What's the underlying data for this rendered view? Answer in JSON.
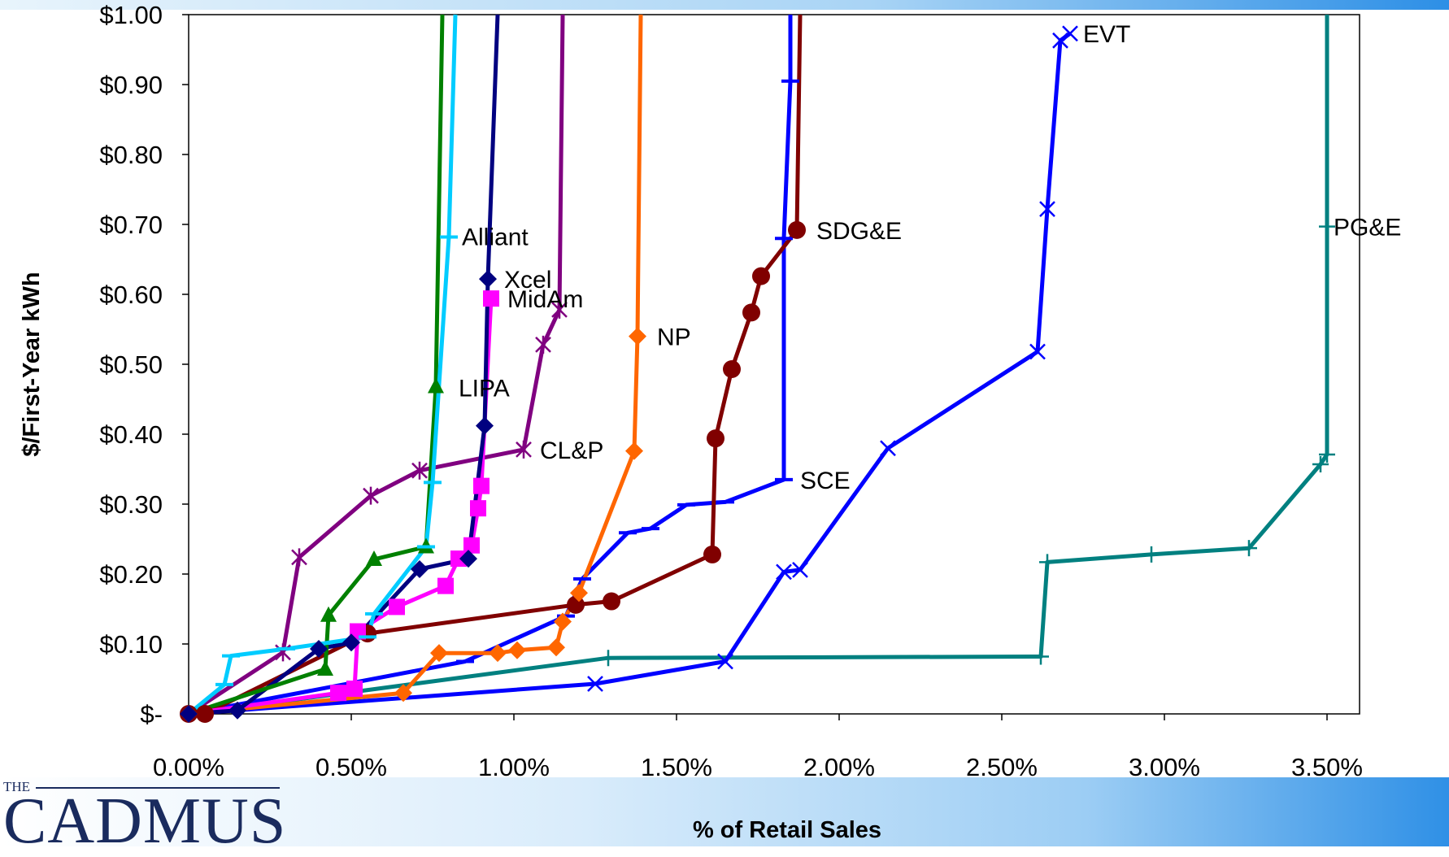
{
  "chart_data": {
    "type": "line",
    "title": "",
    "xlabel": "% of Retail Sales",
    "ylabel": "$/First-Year kWh",
    "xlim": [
      0,
      0.036
    ],
    "ylim": [
      0,
      1.0
    ],
    "x_ticks": [
      "0.00%",
      "0.50%",
      "1.00%",
      "1.50%",
      "2.00%",
      "2.50%",
      "3.00%",
      "3.50%"
    ],
    "y_ticks": [
      "$-",
      "$0.10",
      "$0.20",
      "$0.30",
      "$0.40",
      "$0.50",
      "$0.60",
      "$0.70",
      "$0.80",
      "$0.90",
      "$1.00"
    ],
    "grid": false,
    "legend": "none (series labeled directly)",
    "series": [
      {
        "name": "PG&E",
        "color": "#008080",
        "marker": "plus",
        "points": [
          [
            0.0,
            0.0
          ],
          [
            0.0129,
            0.08
          ],
          [
            0.0262,
            0.082
          ],
          [
            0.0264,
            0.217
          ],
          [
            0.0296,
            0.228
          ],
          [
            0.0326,
            0.237
          ],
          [
            0.0348,
            0.357
          ],
          [
            0.035,
            0.371
          ],
          [
            0.035,
            0.697
          ],
          [
            0.035,
            1.05
          ]
        ]
      },
      {
        "name": "EVT",
        "color": "#0000ff",
        "marker": "x",
        "points": [
          [
            0.0,
            0.0
          ],
          [
            0.0125,
            0.043
          ],
          [
            0.0165,
            0.075
          ],
          [
            0.0183,
            0.203
          ],
          [
            0.0188,
            0.206
          ],
          [
            0.0215,
            0.38
          ],
          [
            0.0261,
            0.518
          ],
          [
            0.0264,
            0.722
          ],
          [
            0.0268,
            0.963
          ],
          [
            0.0271,
            0.973
          ]
        ]
      },
      {
        "name": "SCE",
        "color": "#0000ff",
        "marker": "dash",
        "points": [
          [
            0.0,
            0.0
          ],
          [
            0.0085,
            0.075
          ],
          [
            0.0116,
            0.14
          ],
          [
            0.0121,
            0.193
          ],
          [
            0.0135,
            0.259
          ],
          [
            0.0142,
            0.265
          ],
          [
            0.0153,
            0.299
          ],
          [
            0.0165,
            0.303
          ],
          [
            0.0183,
            0.335
          ],
          [
            0.0183,
            0.68
          ],
          [
            0.0185,
            0.905
          ],
          [
            0.0185,
            1.05
          ]
        ]
      },
      {
        "name": "SDG&E",
        "color": "#800000",
        "marker": "circle",
        "points": [
          [
            0.0,
            0.0
          ],
          [
            0.0005,
            0.0
          ],
          [
            0.0055,
            0.115
          ],
          [
            0.0119,
            0.156
          ],
          [
            0.013,
            0.161
          ],
          [
            0.0161,
            0.228
          ],
          [
            0.0162,
            0.394
          ],
          [
            0.0167,
            0.493
          ],
          [
            0.0173,
            0.574
          ],
          [
            0.0176,
            0.626
          ],
          [
            0.0187,
            0.692
          ],
          [
            0.0188,
            1.05
          ]
        ]
      },
      {
        "name": "NP",
        "color": "#ff6600",
        "marker": "diamond",
        "points": [
          [
            0.0,
            0.0
          ],
          [
            0.0066,
            0.03
          ],
          [
            0.0077,
            0.087
          ],
          [
            0.0095,
            0.087
          ],
          [
            0.0101,
            0.091
          ],
          [
            0.0113,
            0.095
          ],
          [
            0.0115,
            0.132
          ],
          [
            0.012,
            0.173
          ],
          [
            0.0137,
            0.376
          ],
          [
            0.0138,
            0.54
          ],
          [
            0.0139,
            1.05
          ]
        ]
      },
      {
        "name": "CL&P",
        "color": "#800080",
        "marker": "star",
        "points": [
          [
            0.0,
            0.0
          ],
          [
            0.0029,
            0.088
          ],
          [
            0.0034,
            0.224
          ],
          [
            0.0056,
            0.312
          ],
          [
            0.0071,
            0.348
          ],
          [
            0.0103,
            0.378
          ],
          [
            0.0109,
            0.528
          ],
          [
            0.0114,
            0.578
          ],
          [
            0.0115,
            1.05
          ]
        ]
      },
      {
        "name": "MidAm",
        "color": "#ff00ff",
        "marker": "square",
        "points": [
          [
            0.0,
            0.0
          ],
          [
            0.0046,
            0.03
          ],
          [
            0.0051,
            0.036
          ],
          [
            0.0052,
            0.118
          ],
          [
            0.0064,
            0.153
          ],
          [
            0.0079,
            0.183
          ],
          [
            0.0083,
            0.222
          ],
          [
            0.0087,
            0.241
          ],
          [
            0.0089,
            0.294
          ],
          [
            0.009,
            0.326
          ],
          [
            0.0093,
            0.594
          ]
        ]
      },
      {
        "name": "Xcel",
        "color": "#000080",
        "marker": "diamond",
        "points": [
          [
            0.0,
            0.0
          ],
          [
            0.0015,
            0.005
          ],
          [
            0.004,
            0.093
          ],
          [
            0.005,
            0.102
          ],
          [
            0.0071,
            0.207
          ],
          [
            0.0086,
            0.222
          ],
          [
            0.0091,
            0.412
          ],
          [
            0.0092,
            0.622
          ],
          [
            0.0095,
            1.05
          ]
        ]
      },
      {
        "name": "LIPA",
        "color": "#008000",
        "marker": "triangle",
        "points": [
          [
            0.0,
            0.0
          ],
          [
            0.0042,
            0.064
          ],
          [
            0.0043,
            0.141
          ],
          [
            0.0057,
            0.221
          ],
          [
            0.0073,
            0.239
          ],
          [
            0.0076,
            0.468
          ],
          [
            0.0078,
            1.05
          ]
        ]
      },
      {
        "name": "Alliant",
        "color": "#00ccff",
        "marker": "dash",
        "points": [
          [
            0.0,
            0.0
          ],
          [
            0.0011,
            0.042
          ],
          [
            0.0013,
            0.083
          ],
          [
            0.003,
            0.093
          ],
          [
            0.0055,
            0.11
          ],
          [
            0.0057,
            0.143
          ],
          [
            0.0073,
            0.239
          ],
          [
            0.0075,
            0.331
          ],
          [
            0.008,
            0.682
          ],
          [
            0.0082,
            1.05
          ]
        ]
      }
    ],
    "annotations": [
      {
        "text": "Alliant",
        "x": 0.0084,
        "y": 0.683
      },
      {
        "text": "Xcel",
        "x": 0.0097,
        "y": 0.622
      },
      {
        "text": "MidAm",
        "x": 0.0098,
        "y": 0.594
      },
      {
        "text": "NP",
        "x": 0.0144,
        "y": 0.54
      },
      {
        "text": "LIPA",
        "x": 0.0083,
        "y": 0.467
      },
      {
        "text": "CL&P",
        "x": 0.0108,
        "y": 0.378
      },
      {
        "text": "SDG&E",
        "x": 0.0193,
        "y": 0.692
      },
      {
        "text": "SCE",
        "x": 0.0188,
        "y": 0.335
      },
      {
        "text": "EVT",
        "x": 0.0275,
        "y": 0.973
      },
      {
        "text": "PG&E",
        "x": 0.0352,
        "y": 0.697
      }
    ]
  },
  "logo": {
    "the": "THE",
    "name": "CADMUS"
  }
}
